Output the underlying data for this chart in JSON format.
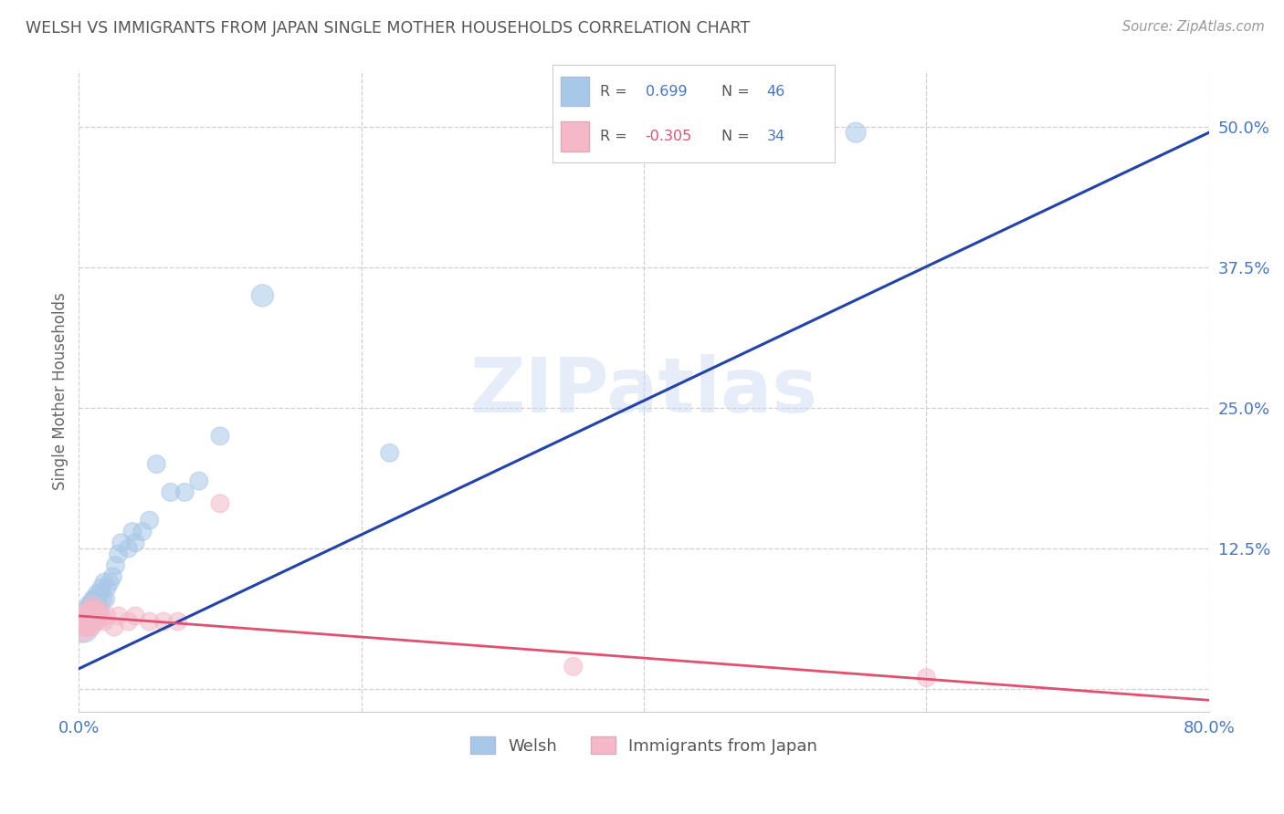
{
  "title": "WELSH VS IMMIGRANTS FROM JAPAN SINGLE MOTHER HOUSEHOLDS CORRELATION CHART",
  "source": "Source: ZipAtlas.com",
  "ylabel": "Single Mother Households",
  "xlim": [
    0.0,
    0.8
  ],
  "ylim": [
    -0.02,
    0.55
  ],
  "y_ticks": [
    0.0,
    0.125,
    0.25,
    0.375,
    0.5
  ],
  "y_tick_labels": [
    "",
    "12.5%",
    "25.0%",
    "37.5%",
    "50.0%"
  ],
  "x_ticks": [
    0.0,
    0.2,
    0.4,
    0.6,
    0.8
  ],
  "x_tick_labels": [
    "0.0%",
    "",
    "",
    "",
    "80.0%"
  ],
  "grid_color": "#d0d0d0",
  "background_color": "#ffffff",
  "watermark": "ZIPatlas",
  "welsh_color": "#a8c8e8",
  "welsh_edge_color": "#a8c8e8",
  "welsh_line_color": "#2244aa",
  "japan_color": "#f4b8c8",
  "japan_edge_color": "#f4b8c8",
  "japan_line_color": "#e05070",
  "welsh_R": 0.699,
  "welsh_N": 46,
  "japan_R": -0.305,
  "japan_N": 34,
  "welsh_line_x0": 0.0,
  "welsh_line_y0": 0.018,
  "welsh_line_x1": 0.8,
  "welsh_line_y1": 0.495,
  "japan_line_x0": 0.0,
  "japan_line_y0": 0.065,
  "japan_line_x1": 0.8,
  "japan_line_y1": -0.01,
  "welsh_x": [
    0.003,
    0.005,
    0.005,
    0.005,
    0.006,
    0.007,
    0.007,
    0.008,
    0.008,
    0.009,
    0.009,
    0.01,
    0.01,
    0.01,
    0.011,
    0.011,
    0.012,
    0.012,
    0.013,
    0.013,
    0.014,
    0.015,
    0.015,
    0.016,
    0.017,
    0.018,
    0.019,
    0.02,
    0.022,
    0.024,
    0.026,
    0.028,
    0.03,
    0.035,
    0.038,
    0.04,
    0.045,
    0.05,
    0.055,
    0.065,
    0.075,
    0.085,
    0.1,
    0.13,
    0.22,
    0.55
  ],
  "welsh_y": [
    0.055,
    0.06,
    0.065,
    0.07,
    0.06,
    0.06,
    0.075,
    0.065,
    0.075,
    0.065,
    0.075,
    0.06,
    0.07,
    0.08,
    0.065,
    0.08,
    0.065,
    0.08,
    0.07,
    0.085,
    0.075,
    0.07,
    0.085,
    0.09,
    0.08,
    0.095,
    0.08,
    0.09,
    0.095,
    0.1,
    0.11,
    0.12,
    0.13,
    0.125,
    0.14,
    0.13,
    0.14,
    0.15,
    0.2,
    0.175,
    0.175,
    0.185,
    0.225,
    0.35,
    0.21,
    0.495
  ],
  "welsh_sizes": [
    600,
    250,
    200,
    200,
    200,
    200,
    200,
    200,
    200,
    200,
    200,
    200,
    200,
    200,
    200,
    200,
    200,
    200,
    200,
    200,
    200,
    200,
    200,
    200,
    200,
    200,
    200,
    200,
    200,
    200,
    200,
    200,
    200,
    200,
    200,
    200,
    200,
    200,
    200,
    200,
    200,
    200,
    200,
    300,
    200,
    250
  ],
  "japan_x": [
    0.002,
    0.003,
    0.003,
    0.004,
    0.004,
    0.005,
    0.005,
    0.006,
    0.006,
    0.007,
    0.007,
    0.008,
    0.008,
    0.009,
    0.009,
    0.01,
    0.01,
    0.011,
    0.012,
    0.013,
    0.014,
    0.015,
    0.018,
    0.02,
    0.025,
    0.028,
    0.035,
    0.04,
    0.05,
    0.06,
    0.07,
    0.1,
    0.35,
    0.6
  ],
  "japan_y": [
    0.055,
    0.06,
    0.065,
    0.055,
    0.065,
    0.055,
    0.065,
    0.055,
    0.065,
    0.06,
    0.07,
    0.06,
    0.07,
    0.055,
    0.065,
    0.06,
    0.075,
    0.06,
    0.07,
    0.06,
    0.065,
    0.07,
    0.06,
    0.065,
    0.055,
    0.065,
    0.06,
    0.065,
    0.06,
    0.06,
    0.06,
    0.165,
    0.02,
    0.01
  ],
  "japan_sizes": [
    500,
    200,
    200,
    200,
    200,
    200,
    200,
    200,
    200,
    200,
    200,
    200,
    200,
    200,
    200,
    200,
    200,
    200,
    200,
    200,
    200,
    200,
    200,
    200,
    200,
    200,
    200,
    200,
    200,
    200,
    200,
    200,
    200,
    200
  ]
}
